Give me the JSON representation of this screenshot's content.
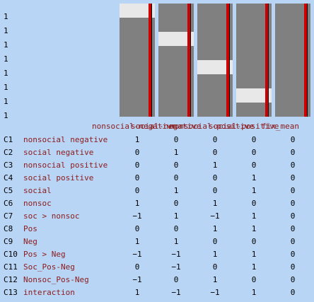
{
  "row_labels": [
    "1",
    "1",
    "1",
    "1",
    "1",
    "1",
    "1",
    "1"
  ],
  "columns": [
    "nonsocial-negative",
    "social-negative",
    "nonsocial-positive",
    "social-positive",
    "fix_mean"
  ],
  "design_blocks": [
    [
      1,
      0,
      0,
      0
    ],
    [
      1,
      0,
      0,
      0
    ],
    [
      0,
      1,
      0,
      0
    ],
    [
      0,
      1,
      0,
      0
    ],
    [
      0,
      0,
      1,
      0
    ],
    [
      0,
      0,
      1,
      0
    ],
    [
      0,
      0,
      0,
      1
    ],
    [
      0,
      0,
      0,
      1
    ]
  ],
  "contrasts": [
    {
      "id": "C1",
      "name": "nonsocial negative",
      "values": [
        "1",
        "0",
        "0",
        "0",
        "0"
      ]
    },
    {
      "id": "C2",
      "name": "social negative",
      "values": [
        "0",
        "1",
        "0",
        "0",
        "0"
      ]
    },
    {
      "id": "C3",
      "name": "nonsocial positive",
      "values": [
        "0",
        "0",
        "1",
        "0",
        "0"
      ]
    },
    {
      "id": "C4",
      "name": "social positive",
      "values": [
        "0",
        "0",
        "0",
        "1",
        "0"
      ]
    },
    {
      "id": "C5",
      "name": "social",
      "values": [
        "0",
        "1",
        "0",
        "1",
        "0"
      ]
    },
    {
      "id": "C6",
      "name": "nonsoc",
      "values": [
        "1",
        "0",
        "1",
        "0",
        "0"
      ]
    },
    {
      "id": "C7",
      "name": "soc > nonsoc",
      "values": [
        "−1",
        "1",
        "−1",
        "1",
        "0"
      ]
    },
    {
      "id": "C8",
      "name": "Pos",
      "values": [
        "0",
        "0",
        "1",
        "1",
        "0"
      ]
    },
    {
      "id": "C9",
      "name": "Neg",
      "values": [
        "1",
        "1",
        "0",
        "0",
        "0"
      ]
    },
    {
      "id": "C10",
      "name": "Pos > Neg",
      "values": [
        "−1",
        "−1",
        "1",
        "1",
        "0"
      ]
    },
    {
      "id": "C11",
      "name": "Soc_Pos-Neg",
      "values": [
        "0",
        "−1",
        "0",
        "1",
        "0"
      ]
    },
    {
      "id": "C12",
      "name": "Nonsoc_Pos-Neg",
      "values": [
        "−1",
        "0",
        "1",
        "0",
        "0"
      ]
    },
    {
      "id": "C13",
      "name": "interaction",
      "values": [
        "1",
        "−1",
        "−1",
        "1",
        "0"
      ]
    }
  ],
  "colors": {
    "background": "#b9d5f5",
    "high": "#e8e8e8",
    "low": "#808080",
    "line": "#cc0000",
    "name_text": "#8b1a1a"
  }
}
